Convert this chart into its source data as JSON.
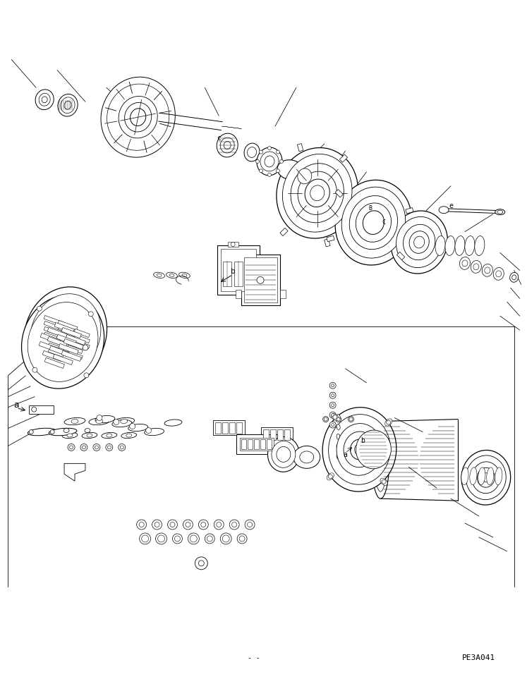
{
  "bg_color": "#ffffff",
  "fig_width": 7.47,
  "fig_height": 9.63,
  "dpi": 100,
  "watermark": "PE3A041",
  "label_a": "a",
  "label_b": "b",
  "label_c": "c",
  "label_e": "e"
}
